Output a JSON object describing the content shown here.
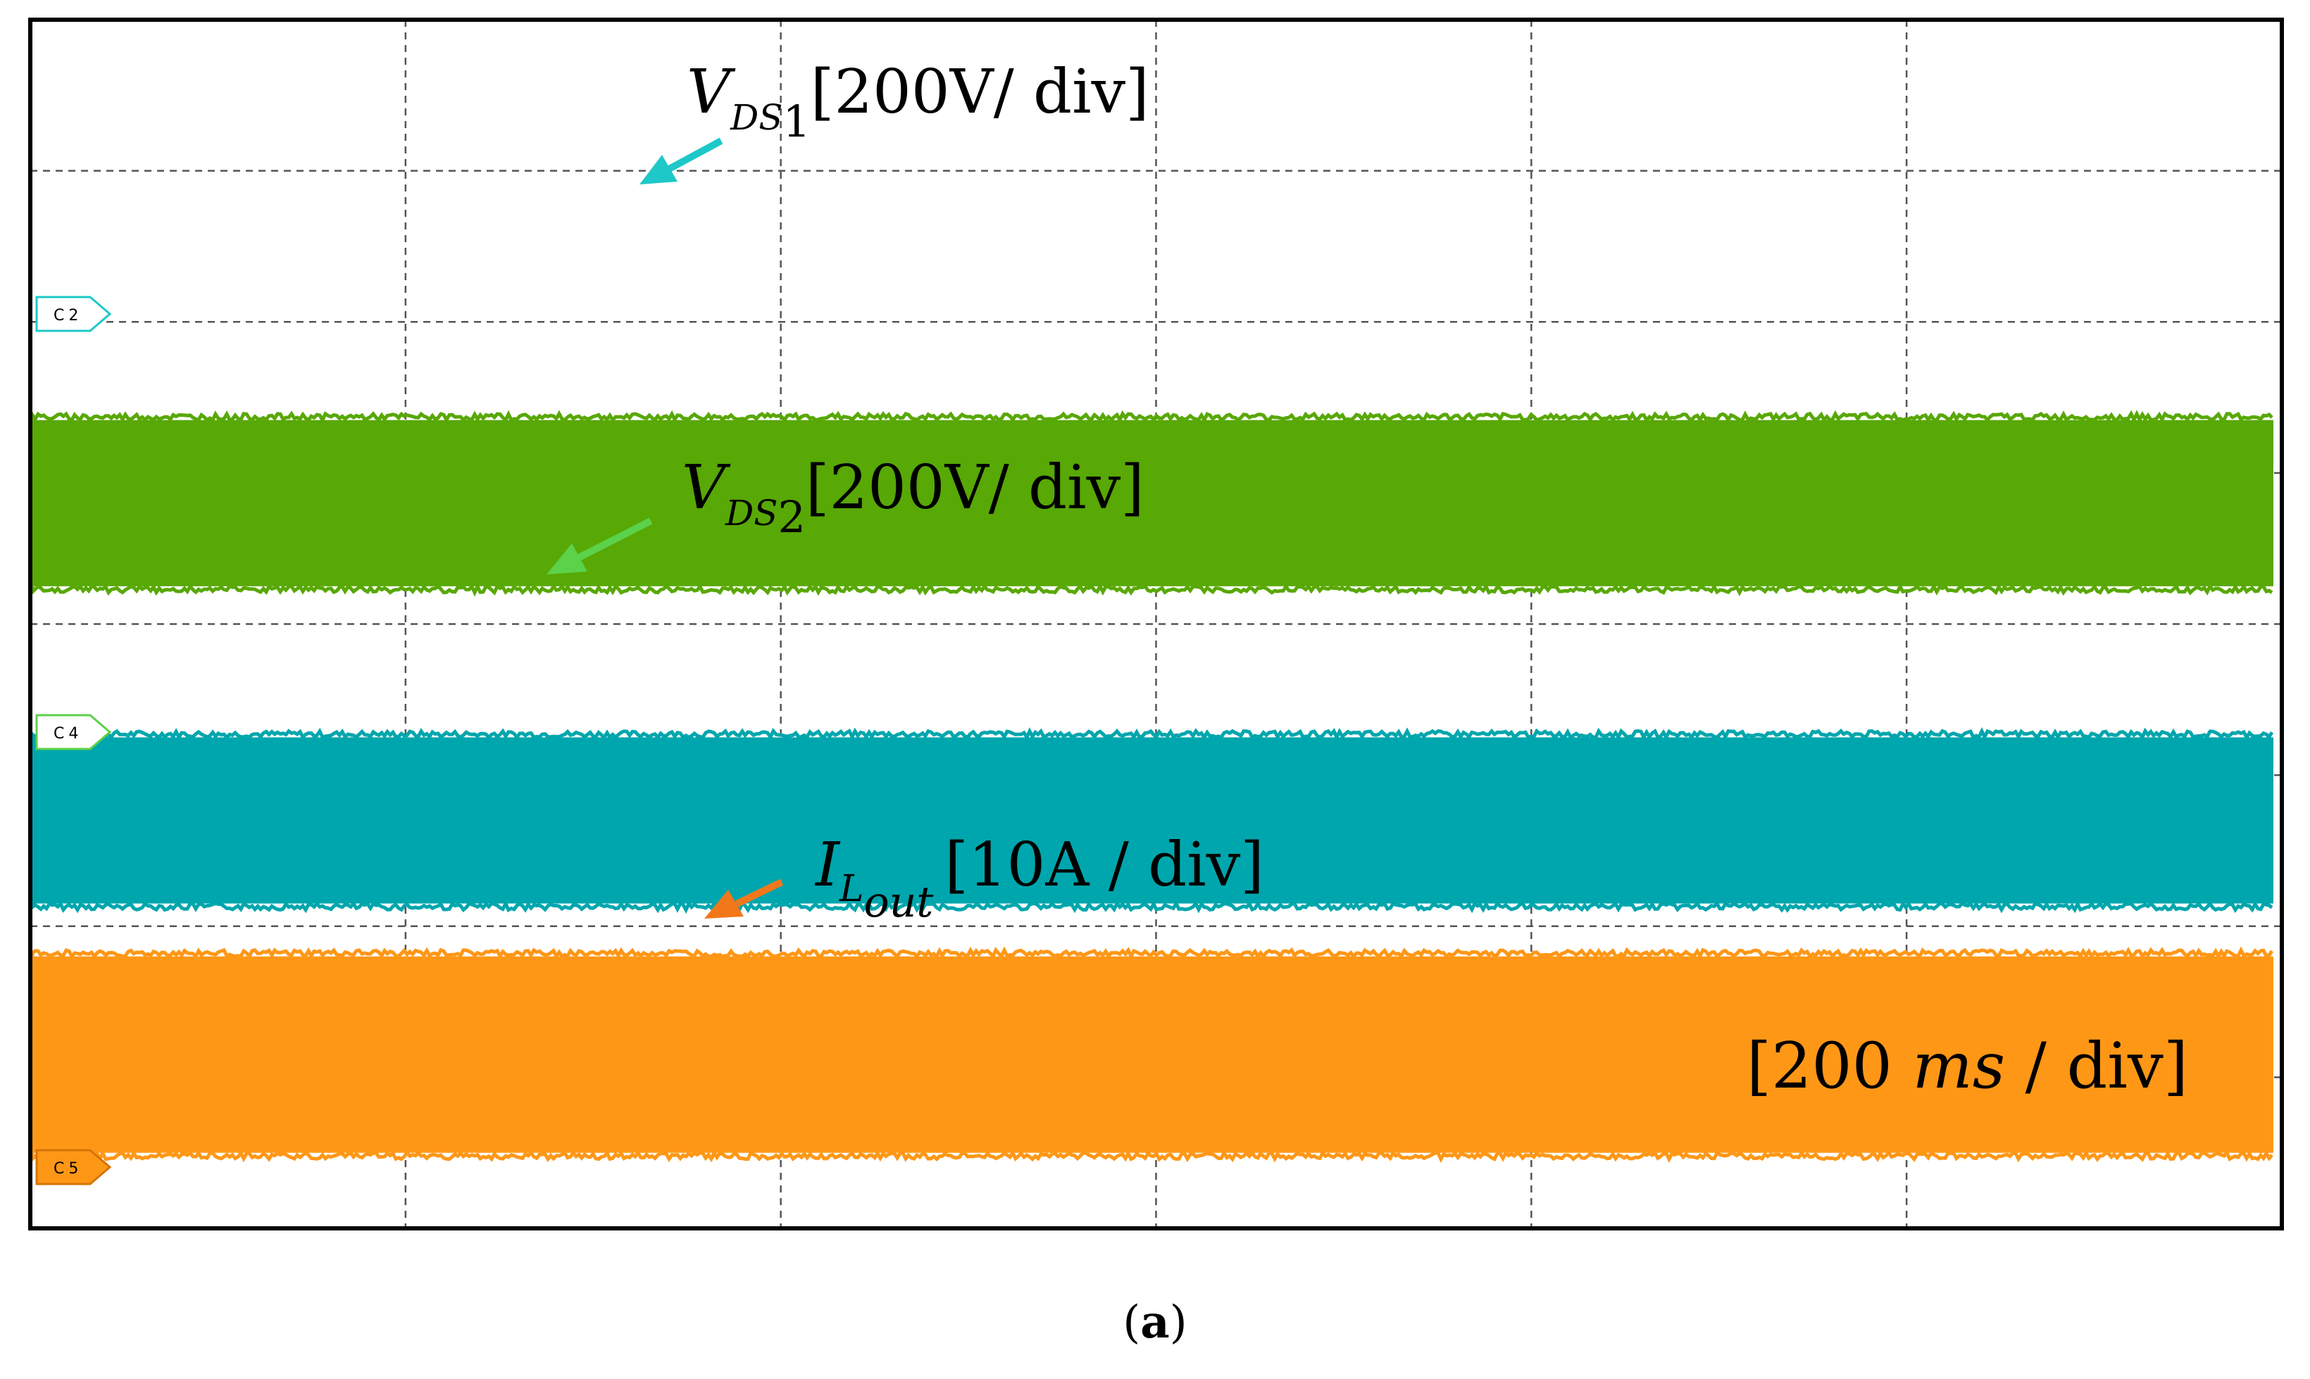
{
  "chart_data": {
    "type": "line",
    "title": "",
    "xlabel": "",
    "ylabel": "",
    "grid": true,
    "x_divisions": 6,
    "y_divisions": 8,
    "time_scale": "[200 ms / div]",
    "time_scale_parts": {
      "open": "[200 ",
      "unit": "ms",
      "close": " / div]"
    },
    "caption": {
      "open": "(",
      "letter": "a",
      "close": ")"
    },
    "series": [
      {
        "name": "VDS1",
        "channel": "C2",
        "color": "#00a6ad",
        "arrow_color": "#1ec8c8",
        "scale": "[200V/ div]",
        "label": {
          "base": "V",
          "sub": "DS",
          "subsub": "1",
          "scale": "[200V/ div]"
        },
        "baseline_div": 2.15,
        "amplitude_div": 1.1
      },
      {
        "name": "VDS2",
        "channel": "C4",
        "color": "#58a806",
        "arrow_color": "#5cd14a",
        "scale": "[200V/ div]",
        "label": {
          "base": "V",
          "sub": "DS",
          "subsub": "2",
          "scale": "[200V/ div]"
        },
        "baseline_div": 4.25,
        "amplitude_div": 1.1
      },
      {
        "name": "ILout",
        "channel": "C5",
        "color": "#ff9716",
        "arrow_color": "#f2771a",
        "scale": "[10A / div]",
        "label": {
          "base": "I",
          "sub": "L",
          "subsub": "out",
          "scale": "[10A / div]"
        },
        "baseline_div": 0.5,
        "amplitude_div": 1.3
      }
    ]
  }
}
